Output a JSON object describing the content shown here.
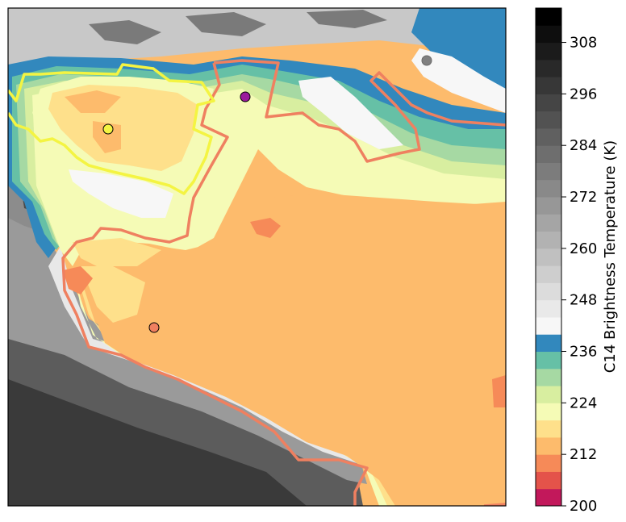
{
  "chart_data": {
    "type": "heatmap",
    "title": "",
    "xlabel": "",
    "ylabel": "",
    "colorbar": {
      "label": "C14 Brightness Temperature (K)",
      "range": [
        200,
        316
      ],
      "tick_values": [
        200,
        212,
        224,
        236,
        248,
        260,
        272,
        284,
        296,
        308
      ],
      "tick_labels": [
        "200",
        "212",
        "224",
        "236",
        "248",
        "260",
        "272",
        "284",
        "296",
        "308"
      ],
      "color_levels": [
        {
          "from": 200,
          "to": 204,
          "color": "#c2185b"
        },
        {
          "from": 204,
          "to": 208,
          "color": "#e4534a"
        },
        {
          "from": 208,
          "to": 212,
          "color": "#f68a58"
        },
        {
          "from": 212,
          "to": 216,
          "color": "#fdbb6c"
        },
        {
          "from": 216,
          "to": 220,
          "color": "#fee08b"
        },
        {
          "from": 220,
          "to": 224,
          "color": "#f5fbb6"
        },
        {
          "from": 224,
          "to": 228,
          "color": "#d8eea0"
        },
        {
          "from": 228,
          "to": 232,
          "color": "#a6d9a3"
        },
        {
          "from": 232,
          "to": 236,
          "color": "#66c0a6"
        },
        {
          "from": 236,
          "to": 240,
          "color": "#3288bd"
        },
        {
          "from": 240,
          "to": 316,
          "color_start": "#f7f7f7",
          "color_end": "#000000",
          "style": "grayscale"
        }
      ]
    },
    "markers": [
      {
        "id": "yellow-point",
        "color": "#f4f442"
      },
      {
        "id": "purple-point",
        "color": "#9a1c9c"
      },
      {
        "id": "salmon-point",
        "color": "#f08060"
      },
      {
        "id": "gray-point",
        "color": "#808080"
      }
    ],
    "outlines": [
      {
        "id": "yellow-outline",
        "color": "#f4f442"
      },
      {
        "id": "salmon-outline",
        "color": "#ef8060"
      }
    ],
    "field_summary": "warm colder cloud region (212-216 K) over the center-right, gray warm surface in lower-left, cold-ring transition bands"
  }
}
